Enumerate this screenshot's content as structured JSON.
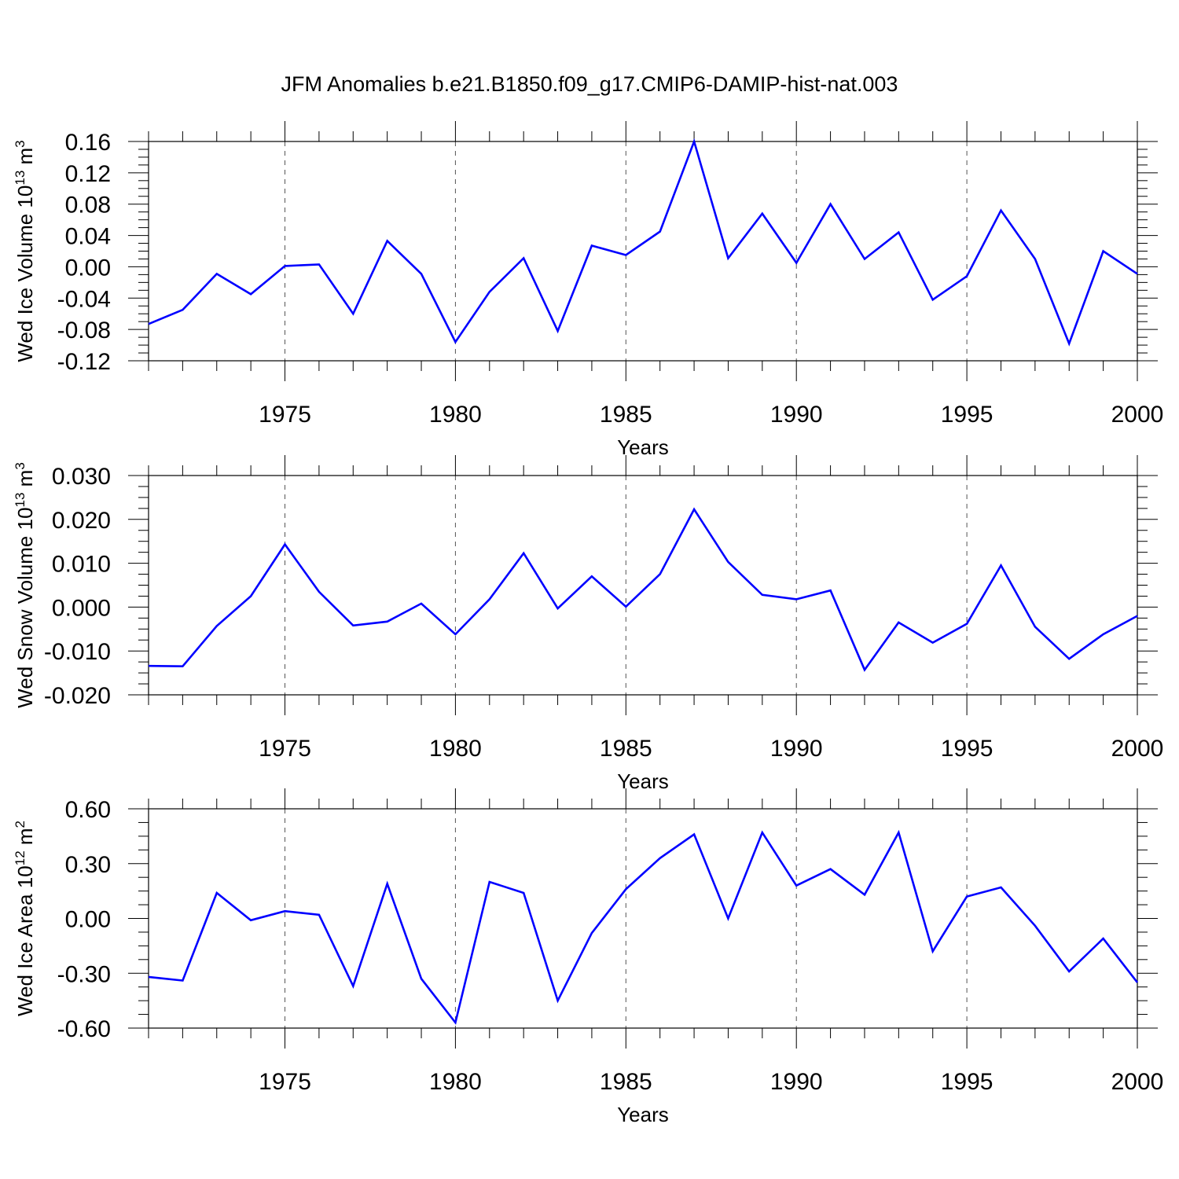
{
  "title": "JFM Anomalies b.e21.B1850.f09_g17.CMIP6-DAMIP-hist-nat.003",
  "line_color": "#0000ff",
  "chart_data": [
    {
      "type": "line",
      "ylabel": {
        "prefix": "Wed Ice Volume 10",
        "exponent": "13",
        "unit": " m",
        "unit_exponent": "3"
      },
      "xlabel": "Years",
      "xlim": [
        1971,
        2000
      ],
      "ylim": [
        -0.12,
        0.16
      ],
      "yticks": [
        "0.16",
        "0.12",
        "0.08",
        "0.04",
        "0.00",
        "-0.04",
        "-0.08",
        "-0.12"
      ],
      "xticks": [
        "1975",
        "1980",
        "1985",
        "1990",
        "1995",
        "2000"
      ],
      "grid": "dashed vertical at labeled years",
      "x": [
        1971,
        1972,
        1973,
        1974,
        1975,
        1976,
        1977,
        1978,
        1979,
        1980,
        1981,
        1982,
        1983,
        1984,
        1985,
        1986,
        1987,
        1988,
        1989,
        1990,
        1991,
        1992,
        1993,
        1994,
        1995,
        1996,
        1997,
        1998,
        1999,
        2000
      ],
      "values": [
        -0.073,
        -0.055,
        -0.009,
        -0.035,
        0.001,
        0.003,
        -0.06,
        0.033,
        -0.009,
        -0.096,
        -0.032,
        0.011,
        -0.082,
        0.027,
        0.015,
        0.045,
        0.16,
        0.011,
        0.068,
        0.005,
        0.08,
        0.01,
        0.044,
        -0.042,
        -0.012,
        0.072,
        0.01,
        -0.098,
        0.02,
        -0.009
      ]
    },
    {
      "type": "line",
      "ylabel": {
        "prefix": "Wed Snow Volume 10",
        "exponent": "13",
        "unit": " m",
        "unit_exponent": "3"
      },
      "xlabel": "Years",
      "xlim": [
        1971,
        2000
      ],
      "ylim": [
        -0.02,
        0.03
      ],
      "yticks": [
        "0.030",
        "0.020",
        "0.010",
        "0.000",
        "-0.010",
        "-0.020"
      ],
      "xticks": [
        "1975",
        "1980",
        "1985",
        "1990",
        "1995",
        "2000"
      ],
      "grid": "dashed vertical at labeled years",
      "x": [
        1971,
        1972,
        1973,
        1974,
        1975,
        1976,
        1977,
        1978,
        1979,
        1980,
        1981,
        1982,
        1983,
        1984,
        1985,
        1986,
        1987,
        1988,
        1989,
        1990,
        1991,
        1992,
        1993,
        1994,
        1995,
        1996,
        1997,
        1998,
        1999,
        2000
      ],
      "values": [
        -0.0134,
        -0.0135,
        -0.0043,
        0.0025,
        0.0143,
        0.0035,
        -0.0042,
        -0.0033,
        0.0008,
        -0.0062,
        0.0018,
        0.0123,
        -0.0003,
        0.007,
        0.0001,
        0.0075,
        0.0223,
        0.0103,
        0.0028,
        0.0018,
        0.0038,
        -0.0143,
        -0.0035,
        -0.0081,
        -0.0038,
        0.0095,
        -0.0045,
        -0.0118,
        -0.0062,
        -0.002
      ]
    },
    {
      "type": "line",
      "ylabel": {
        "prefix": "Wed Ice Area 10",
        "exponent": "12",
        "unit": " m",
        "unit_exponent": "2"
      },
      "xlabel": "Years",
      "xlim": [
        1971,
        2000
      ],
      "ylim": [
        -0.6,
        0.6
      ],
      "yticks": [
        "0.60",
        "0.30",
        "0.00",
        "-0.30",
        "-0.60"
      ],
      "xticks": [
        "1975",
        "1980",
        "1985",
        "1990",
        "1995",
        "2000"
      ],
      "grid": "dashed vertical at labeled years",
      "x": [
        1971,
        1972,
        1973,
        1974,
        1975,
        1976,
        1977,
        1978,
        1979,
        1980,
        1981,
        1982,
        1983,
        1984,
        1985,
        1986,
        1987,
        1988,
        1989,
        1990,
        1991,
        1992,
        1993,
        1994,
        1995,
        1996,
        1997,
        1998,
        1999,
        2000
      ],
      "values": [
        -0.32,
        -0.34,
        0.14,
        -0.01,
        0.04,
        0.02,
        -0.37,
        0.19,
        -0.33,
        -0.57,
        0.2,
        0.14,
        -0.45,
        -0.08,
        0.16,
        0.33,
        0.46,
        0.0,
        0.47,
        0.18,
        0.27,
        0.13,
        0.47,
        -0.18,
        0.12,
        0.17,
        -0.04,
        -0.29,
        -0.11,
        -0.35
      ]
    }
  ]
}
